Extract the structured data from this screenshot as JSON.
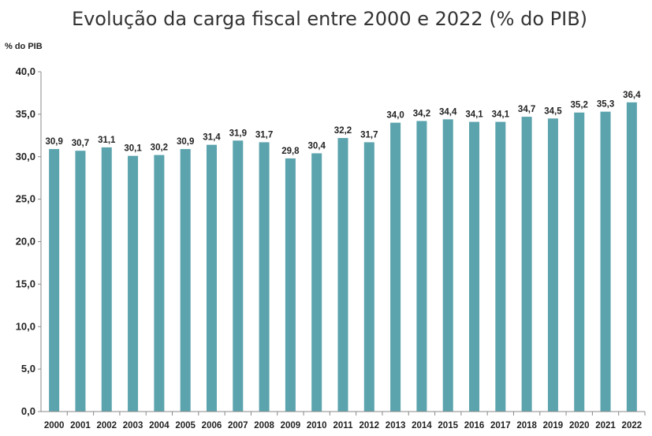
{
  "chart_data": {
    "type": "bar",
    "title": "Evolução da carga fiscal entre 2000 e 2022 (% do PIB)",
    "ylabel": "% do PIB",
    "xlabel": "",
    "ylim": [
      0,
      40
    ],
    "yticks": [
      "0,0",
      "5,0",
      "10,0",
      "15,0",
      "20,0",
      "25,0",
      "30,0",
      "35,0",
      "40,0"
    ],
    "grid": false,
    "bar_color": "#5ba3ad",
    "categories": [
      "2000",
      "2001",
      "2002",
      "2003",
      "2004",
      "2005",
      "2006",
      "2007",
      "2008",
      "2009",
      "2010",
      "2011",
      "2012",
      "2013",
      "2014",
      "2015",
      "2016",
      "2017",
      "2018",
      "2019",
      "2020",
      "2021",
      "2022"
    ],
    "values": [
      30.9,
      30.7,
      31.1,
      30.1,
      30.2,
      30.9,
      31.4,
      31.9,
      31.7,
      29.8,
      30.4,
      32.2,
      31.7,
      34.0,
      34.2,
      34.4,
      34.1,
      34.1,
      34.7,
      34.5,
      35.2,
      35.3,
      36.4
    ],
    "data_labels": [
      "30,9",
      "30,7",
      "31,1",
      "30,1",
      "30,2",
      "30,9",
      "31,4",
      "31,9",
      "31,7",
      "29,8",
      "30,4",
      "32,2",
      "31,7",
      "34,0",
      "34,2",
      "34,4",
      "34,1",
      "34,1",
      "34,7",
      "34,5",
      "35,2",
      "35,3",
      "36,4"
    ]
  }
}
